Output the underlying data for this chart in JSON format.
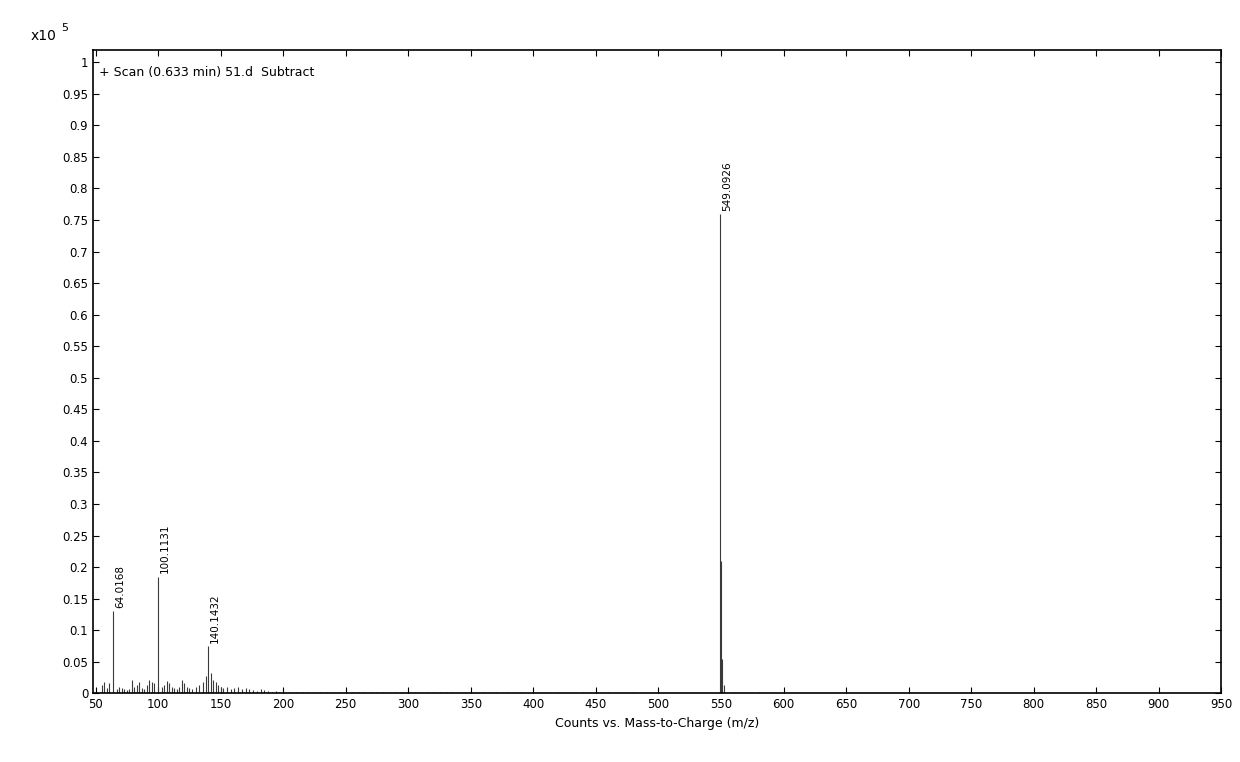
{
  "title_text": "+ Scan (0.633 min) 51.d  Subtract",
  "xlabel": "Counts vs. Mass-to-Charge (m/z)",
  "xmin": 50,
  "xmax": 950,
  "ymin": 0,
  "ymax": 1.0,
  "yticks": [
    0,
    0.05,
    0.1,
    0.15,
    0.2,
    0.25,
    0.3,
    0.35,
    0.4,
    0.45,
    0.5,
    0.55,
    0.6,
    0.65,
    0.7,
    0.75,
    0.8,
    0.85,
    0.9,
    0.95,
    1.0
  ],
  "xticks": [
    50,
    100,
    150,
    200,
    250,
    300,
    350,
    400,
    450,
    500,
    550,
    600,
    650,
    700,
    750,
    800,
    850,
    900,
    950
  ],
  "labeled_peaks": [
    {
      "mz": 64.0168,
      "intensity": 0.13,
      "label": "64.0168"
    },
    {
      "mz": 100.1131,
      "intensity": 0.185,
      "label": "100.1131"
    },
    {
      "mz": 140.1432,
      "intensity": 0.075,
      "label": "140.1432"
    },
    {
      "mz": 549.0926,
      "intensity": 0.76,
      "label": "549.0926"
    }
  ],
  "small_peaks": [
    {
      "mz": 55,
      "intensity": 0.013
    },
    {
      "mz": 57,
      "intensity": 0.018
    },
    {
      "mz": 59,
      "intensity": 0.009
    },
    {
      "mz": 61,
      "intensity": 0.016
    },
    {
      "mz": 64.0168,
      "intensity": 0.13
    },
    {
      "mz": 67,
      "intensity": 0.007
    },
    {
      "mz": 69,
      "intensity": 0.01
    },
    {
      "mz": 71,
      "intensity": 0.009
    },
    {
      "mz": 73,
      "intensity": 0.007
    },
    {
      "mz": 75,
      "intensity": 0.005
    },
    {
      "mz": 77,
      "intensity": 0.007
    },
    {
      "mz": 79,
      "intensity": 0.022
    },
    {
      "mz": 81,
      "intensity": 0.01
    },
    {
      "mz": 83,
      "intensity": 0.013
    },
    {
      "mz": 85,
      "intensity": 0.018
    },
    {
      "mz": 87,
      "intensity": 0.009
    },
    {
      "mz": 89,
      "intensity": 0.007
    },
    {
      "mz": 91,
      "intensity": 0.013
    },
    {
      "mz": 93,
      "intensity": 0.022
    },
    {
      "mz": 95,
      "intensity": 0.018
    },
    {
      "mz": 97,
      "intensity": 0.016
    },
    {
      "mz": 100.1131,
      "intensity": 0.185
    },
    {
      "mz": 103,
      "intensity": 0.01
    },
    {
      "mz": 105,
      "intensity": 0.013
    },
    {
      "mz": 107,
      "intensity": 0.02
    },
    {
      "mz": 109,
      "intensity": 0.016
    },
    {
      "mz": 111,
      "intensity": 0.01
    },
    {
      "mz": 113,
      "intensity": 0.009
    },
    {
      "mz": 115,
      "intensity": 0.007
    },
    {
      "mz": 117,
      "intensity": 0.01
    },
    {
      "mz": 119,
      "intensity": 0.022
    },
    {
      "mz": 121,
      "intensity": 0.016
    },
    {
      "mz": 123,
      "intensity": 0.01
    },
    {
      "mz": 125,
      "intensity": 0.009
    },
    {
      "mz": 127,
      "intensity": 0.007
    },
    {
      "mz": 130,
      "intensity": 0.01
    },
    {
      "mz": 133,
      "intensity": 0.013
    },
    {
      "mz": 136,
      "intensity": 0.018
    },
    {
      "mz": 138,
      "intensity": 0.028
    },
    {
      "mz": 140.1432,
      "intensity": 0.075
    },
    {
      "mz": 142,
      "intensity": 0.032
    },
    {
      "mz": 144,
      "intensity": 0.022
    },
    {
      "mz": 146,
      "intensity": 0.018
    },
    {
      "mz": 148,
      "intensity": 0.013
    },
    {
      "mz": 150,
      "intensity": 0.01
    },
    {
      "mz": 152,
      "intensity": 0.009
    },
    {
      "mz": 155,
      "intensity": 0.01
    },
    {
      "mz": 158,
      "intensity": 0.007
    },
    {
      "mz": 161,
      "intensity": 0.009
    },
    {
      "mz": 164,
      "intensity": 0.01
    },
    {
      "mz": 167,
      "intensity": 0.007
    },
    {
      "mz": 170,
      "intensity": 0.009
    },
    {
      "mz": 173,
      "intensity": 0.007
    },
    {
      "mz": 176,
      "intensity": 0.005
    },
    {
      "mz": 179,
      "intensity": 0.004
    },
    {
      "mz": 182,
      "intensity": 0.007
    },
    {
      "mz": 185,
      "intensity": 0.005
    },
    {
      "mz": 188,
      "intensity": 0.004
    },
    {
      "mz": 191,
      "intensity": 0.003
    },
    {
      "mz": 194,
      "intensity": 0.004
    },
    {
      "mz": 197,
      "intensity": 0.003
    },
    {
      "mz": 200,
      "intensity": 0.004
    },
    {
      "mz": 205,
      "intensity": 0.003
    },
    {
      "mz": 210,
      "intensity": 0.003
    },
    {
      "mz": 215,
      "intensity": 0.003
    },
    {
      "mz": 220,
      "intensity": 0.003
    },
    {
      "mz": 225,
      "intensity": 0.003
    },
    {
      "mz": 230,
      "intensity": 0.003
    },
    {
      "mz": 235,
      "intensity": 0.003
    },
    {
      "mz": 240,
      "intensity": 0.003
    },
    {
      "mz": 245,
      "intensity": 0.003
    },
    {
      "mz": 250,
      "intensity": 0.003
    },
    {
      "mz": 255,
      "intensity": 0.002
    },
    {
      "mz": 260,
      "intensity": 0.003
    },
    {
      "mz": 265,
      "intensity": 0.002
    },
    {
      "mz": 270,
      "intensity": 0.002
    },
    {
      "mz": 275,
      "intensity": 0.002
    },
    {
      "mz": 280,
      "intensity": 0.002
    },
    {
      "mz": 285,
      "intensity": 0.002
    },
    {
      "mz": 290,
      "intensity": 0.002
    },
    {
      "mz": 295,
      "intensity": 0.002
    },
    {
      "mz": 300,
      "intensity": 0.003
    },
    {
      "mz": 305,
      "intensity": 0.002
    },
    {
      "mz": 310,
      "intensity": 0.002
    },
    {
      "mz": 315,
      "intensity": 0.002
    },
    {
      "mz": 320,
      "intensity": 0.003
    },
    {
      "mz": 325,
      "intensity": 0.002
    },
    {
      "mz": 330,
      "intensity": 0.002
    },
    {
      "mz": 335,
      "intensity": 0.002
    },
    {
      "mz": 340,
      "intensity": 0.002
    },
    {
      "mz": 345,
      "intensity": 0.003
    },
    {
      "mz": 350,
      "intensity": 0.002
    },
    {
      "mz": 360,
      "intensity": 0.002
    },
    {
      "mz": 370,
      "intensity": 0.002
    },
    {
      "mz": 380,
      "intensity": 0.002
    },
    {
      "mz": 390,
      "intensity": 0.002
    },
    {
      "mz": 400,
      "intensity": 0.002
    },
    {
      "mz": 420,
      "intensity": 0.002
    },
    {
      "mz": 440,
      "intensity": 0.002
    },
    {
      "mz": 460,
      "intensity": 0.002
    },
    {
      "mz": 480,
      "intensity": 0.002
    },
    {
      "mz": 500,
      "intensity": 0.002
    },
    {
      "mz": 549.0926,
      "intensity": 0.76
    },
    {
      "mz": 550.1,
      "intensity": 0.21
    },
    {
      "mz": 551.1,
      "intensity": 0.055
    },
    {
      "mz": 552.1,
      "intensity": 0.013
    },
    {
      "mz": 560,
      "intensity": 0.002
    },
    {
      "mz": 580,
      "intensity": 0.002
    },
    {
      "mz": 600,
      "intensity": 0.002
    },
    {
      "mz": 650,
      "intensity": 0.002
    },
    {
      "mz": 700,
      "intensity": 0.002
    },
    {
      "mz": 750,
      "intensity": 0.002
    },
    {
      "mz": 800,
      "intensity": 0.002
    },
    {
      "mz": 850,
      "intensity": 0.002
    },
    {
      "mz": 900,
      "intensity": 0.002
    },
    {
      "mz": 940,
      "intensity": 0.002
    }
  ],
  "line_color": "#3a3a3a",
  "background_color": "#ffffff",
  "label_fontsize": 7.5,
  "axis_fontsize": 9,
  "tick_fontsize": 8.5,
  "title_fontsize": 9
}
